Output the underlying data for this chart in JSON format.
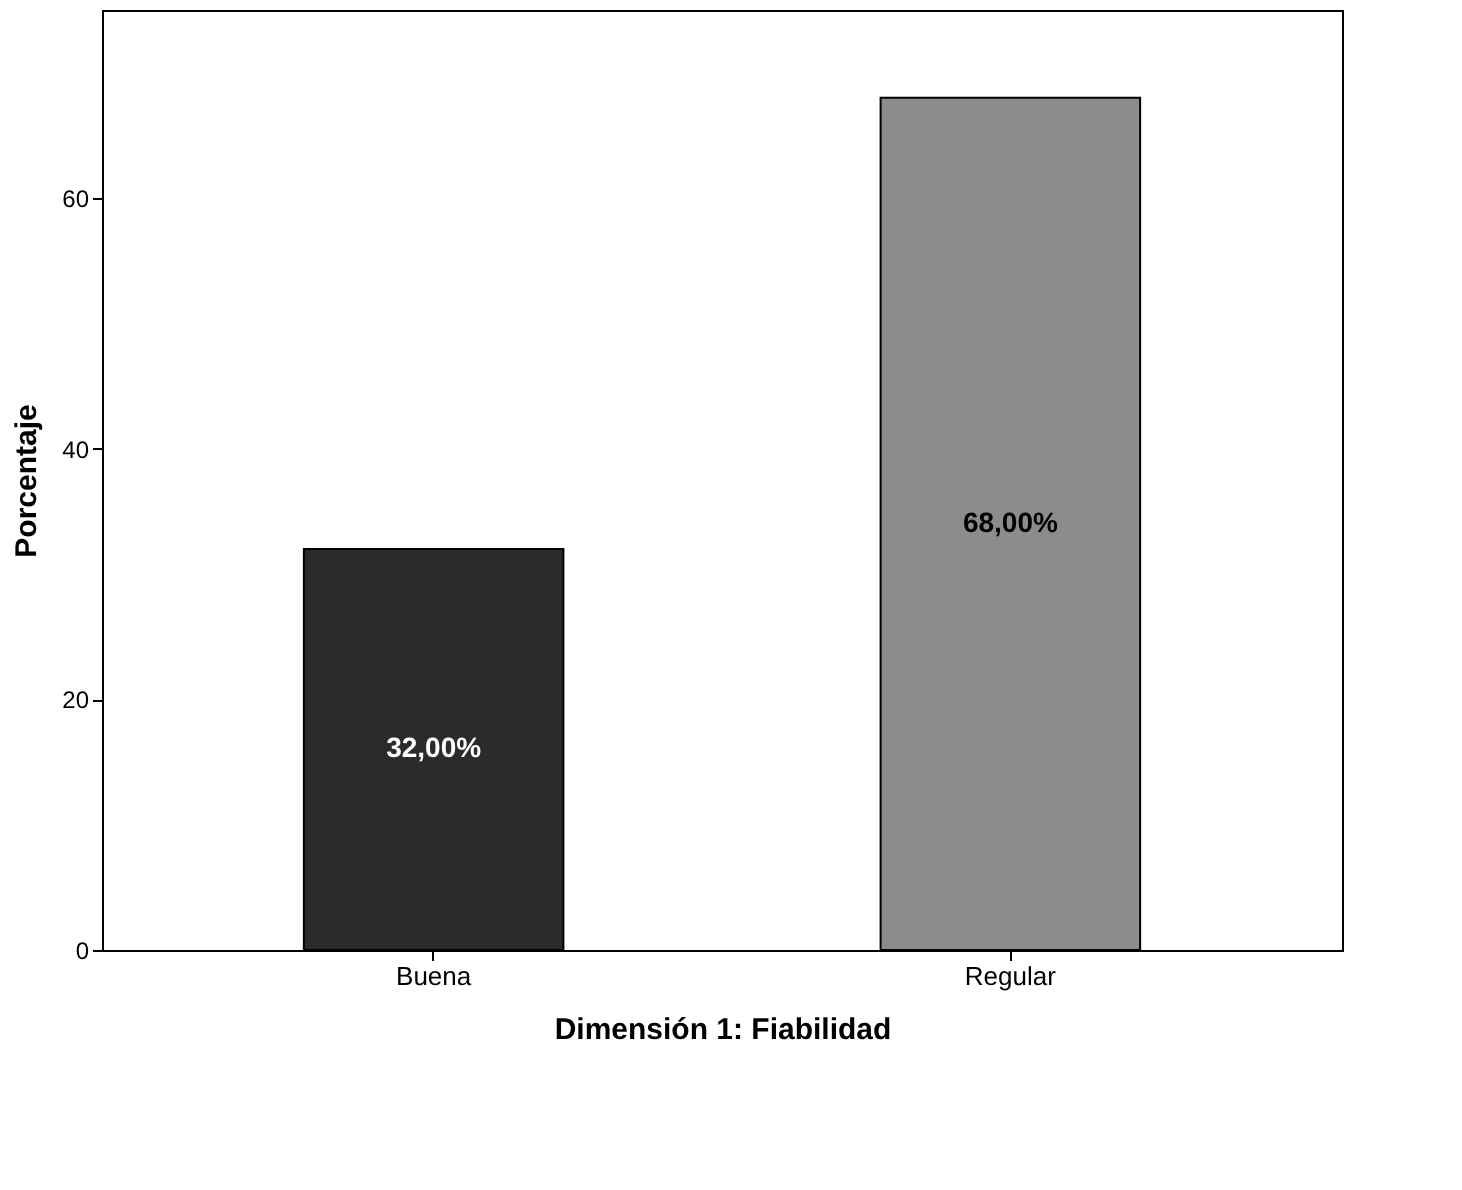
{
  "chart_data": {
    "type": "bar",
    "xlabel": "Dimensión 1: Fiabilidad",
    "ylabel": "Porcentaje",
    "categories": [
      "Buena",
      "Regular"
    ],
    "values": [
      32,
      68
    ],
    "value_labels": [
      "32,00%",
      "68,00%"
    ],
    "colors": [
      "#2b2b2b",
      "#8c8c8c"
    ],
    "ylim": [
      0,
      75
    ],
    "yticks": [
      0,
      20,
      40,
      60
    ],
    "grid": false
  }
}
